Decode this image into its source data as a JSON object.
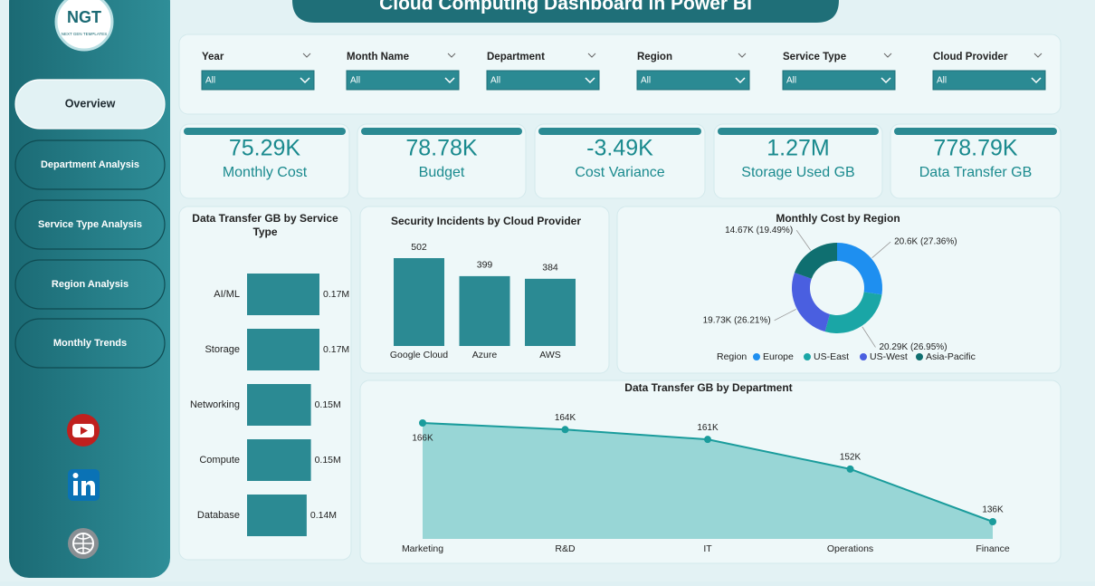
{
  "header": {
    "title": "Cloud Computing Dashboard in Power BI",
    "logo": "NGT",
    "logo_sub": "NEXT GEN TEMPLATES"
  },
  "nav": [
    "Overview",
    "Department Analysis",
    "Service Type Analysis",
    "Region Analysis",
    "Monthly Trends"
  ],
  "filters": [
    {
      "label": "Year",
      "value": "All"
    },
    {
      "label": "Month Name",
      "value": "All"
    },
    {
      "label": "Department",
      "value": "All"
    },
    {
      "label": "Region",
      "value": "All"
    },
    {
      "label": "Service Type",
      "value": "All"
    },
    {
      "label": "Cloud Provider",
      "value": "All"
    }
  ],
  "kpis": [
    {
      "value": "75.29K",
      "label": "Monthly Cost"
    },
    {
      "value": "78.78K",
      "label": "Budget"
    },
    {
      "value": "-3.49K",
      "label": "Cost Variance"
    },
    {
      "value": "1.27M",
      "label": "Storage Used GB"
    },
    {
      "value": "778.79K",
      "label": "Data Transfer GB"
    }
  ],
  "chart_data": [
    {
      "type": "bar",
      "orientation": "horizontal",
      "title": "Data Transfer GB by Service Type",
      "categories": [
        "AI/ML",
        "Storage",
        "Networking",
        "Compute",
        "Database"
      ],
      "values": [
        0.17,
        0.17,
        0.15,
        0.15,
        0.14
      ],
      "value_labels": [
        "0.17M",
        "0.17M",
        "0.15M",
        "0.15M",
        "0.14M"
      ],
      "color": "#2b8a93"
    },
    {
      "type": "bar",
      "orientation": "vertical",
      "title": "Security Incidents by Cloud Provider",
      "categories": [
        "Google Cloud",
        "Azure",
        "AWS"
      ],
      "values": [
        502,
        399,
        384
      ],
      "color": "#2b8a93"
    },
    {
      "type": "pie",
      "donut": true,
      "title": "Monthly Cost by Region",
      "legend_title": "Region",
      "categories": [
        "Europe",
        "US-East",
        "US-West",
        "Asia-Pacific"
      ],
      "values": [
        20600,
        20290,
        19730,
        14670
      ],
      "value_labels": [
        "20.6K (27.36%)",
        "20.29K (26.95%)",
        "19.73K (26.21%)",
        "14.67K (19.49%)"
      ],
      "colors": [
        "#1e8ff0",
        "#1aa6a6",
        "#4a5fe0",
        "#0f6f70"
      ]
    },
    {
      "type": "area",
      "title": "Data Transfer GB by Department",
      "categories": [
        "Marketing",
        "R&D",
        "IT",
        "Operations",
        "Finance"
      ],
      "values": [
        166000,
        164000,
        161000,
        152000,
        136000
      ],
      "value_labels": [
        "166K",
        "164K",
        "161K",
        "152K",
        "136K"
      ],
      "color": "#1a9c9c",
      "fill": "#8ed2d2"
    }
  ]
}
